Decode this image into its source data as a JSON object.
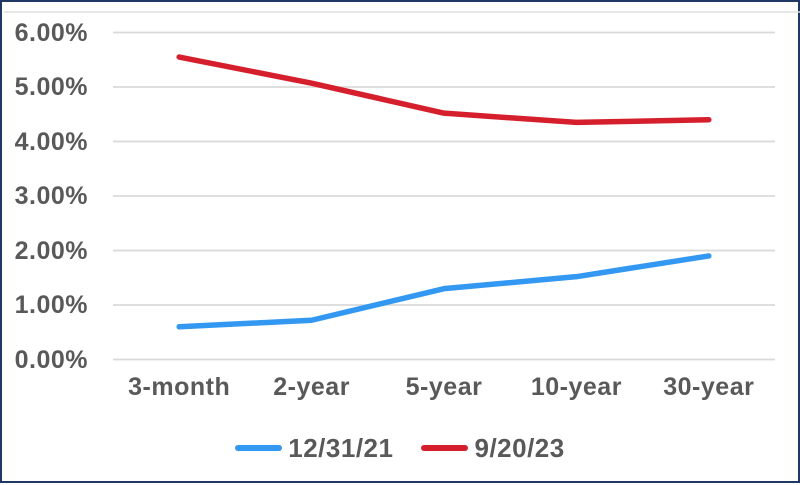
{
  "chart_data": {
    "type": "line",
    "title": "",
    "xlabel": "",
    "ylabel": "",
    "categories": [
      "3-month",
      "2-year",
      "5-year",
      "10-year",
      "30-year"
    ],
    "series": [
      {
        "name": "12/31/21",
        "color": "#3398f2",
        "values": [
          0.6,
          0.72,
          1.3,
          1.52,
          1.9
        ]
      },
      {
        "name": "9/20/23",
        "color": "#d61f2c",
        "values": [
          5.55,
          5.07,
          4.52,
          4.35,
          4.4
        ]
      }
    ],
    "ylim": [
      0,
      6
    ],
    "y_tick_step": 1,
    "y_tick_labels": [
      "0.00%",
      "1.00%",
      "2.00%",
      "3.00%",
      "4.00%",
      "5.00%",
      "6.00%"
    ],
    "grid": true,
    "legend_position": "bottom"
  },
  "colors": {
    "gridline": "#d9d9d9",
    "top_rule": "#dedede",
    "axis_text": "#595959",
    "frame_border": "#1f3864",
    "background": "#ffffff"
  }
}
